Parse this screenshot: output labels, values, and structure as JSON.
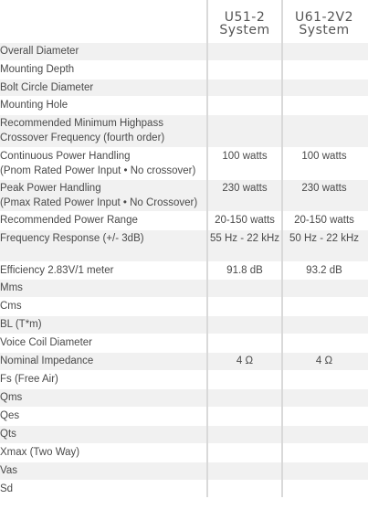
{
  "columns": [
    {
      "title_line1": "U51-2",
      "title_line2": "System"
    },
    {
      "title_line1": "U61-2V2",
      "title_line2": "System"
    }
  ],
  "rows": [
    {
      "label": [
        "Overall Diameter"
      ],
      "a": "",
      "b": ""
    },
    {
      "label": [
        "Mounting Depth"
      ],
      "a": "",
      "b": ""
    },
    {
      "label": [
        "Bolt Circle Diameter"
      ],
      "a": "",
      "b": ""
    },
    {
      "label": [
        "Mounting Hole"
      ],
      "a": "",
      "b": ""
    },
    {
      "label": [
        "Recommended Minimum Highpass",
        "Crossover Frequency (fourth order)"
      ],
      "a": "",
      "b": ""
    },
    {
      "label": [
        "Continuous Power Handling",
        "(Pnom Rated Power Input • No crossover)"
      ],
      "a": "100 watts",
      "b": "100 watts"
    },
    {
      "label": [
        "Peak Power Handling",
        "(Pmax Rated Power Input •  No Crossover)"
      ],
      "a": "230 watts",
      "b": "230 watts"
    },
    {
      "label": [
        "Recommended Power Range"
      ],
      "a": "20-150 watts",
      "b": "20-150 watts"
    },
    {
      "label": [
        "Frequency Response (+/- 3dB)"
      ],
      "a": "55 Hz - 22 kHz",
      "b": "50 Hz - 22 kHz"
    },
    {
      "label": [
        "Efficiency 2.83V/1 meter"
      ],
      "a": "91.8 dB",
      "b": "93.2 dB"
    },
    {
      "label": [
        "Mms"
      ],
      "a": "",
      "b": ""
    },
    {
      "label": [
        "Cms"
      ],
      "a": "",
      "b": ""
    },
    {
      "label": [
        "BL (T*m)"
      ],
      "a": "",
      "b": ""
    },
    {
      "label": [
        "Voice Coil Diameter"
      ],
      "a": "",
      "b": ""
    },
    {
      "label": [
        "Nominal Impedance"
      ],
      "a": "4 Ω",
      "b": "4 Ω"
    },
    {
      "label": [
        "Fs (Free Air)"
      ],
      "a": "",
      "b": ""
    },
    {
      "label": [
        "Qms"
      ],
      "a": "",
      "b": ""
    },
    {
      "label": [
        "Qes"
      ],
      "a": "",
      "b": ""
    },
    {
      "label": [
        "Qts"
      ],
      "a": "",
      "b": ""
    },
    {
      "label": [
        "Xmax (Two Way)"
      ],
      "a": "",
      "b": ""
    },
    {
      "label": [
        "Vas"
      ],
      "a": "",
      "b": ""
    },
    {
      "label": [
        "Sd"
      ],
      "a": "",
      "b": ""
    }
  ],
  "colors": {
    "shade": "#f1f1f1",
    "text": "#4a4a4a",
    "divider": "#d9d9d9"
  }
}
